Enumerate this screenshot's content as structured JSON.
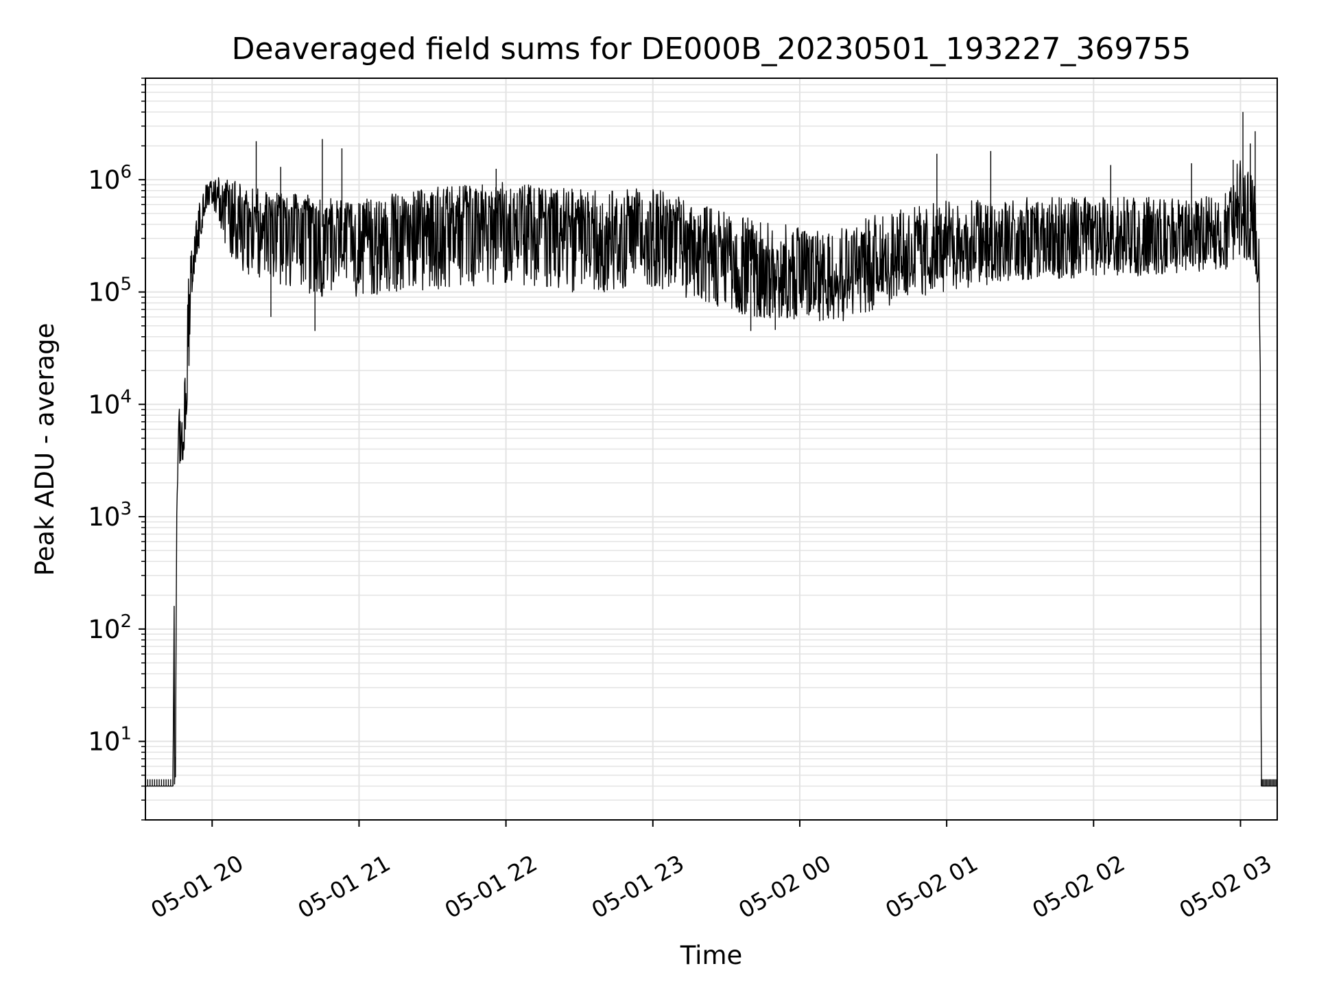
{
  "chart_data": {
    "type": "line",
    "title": "Deaveraged field sums for DE000B_20230501_193227_369755",
    "xlabel": "Time",
    "ylabel": "Peak ADU - average",
    "yscale": "log",
    "ylim": [
      2,
      8000000
    ],
    "xlim": [
      "2023-05-01 19:32:45",
      "2023-05-02 03:15:00"
    ],
    "grid": true,
    "line_color": "#000000",
    "x_ticks": [
      "2023-05-01 20:00",
      "2023-05-01 21:00",
      "2023-05-01 22:00",
      "2023-05-01 23:00",
      "2023-05-02 00:00",
      "2023-05-02 01:00",
      "2023-05-02 02:00",
      "2023-05-02 03:00"
    ],
    "x_tick_labels": [
      "05-01 20",
      "05-01 21",
      "05-01 22",
      "05-01 23",
      "05-02 00",
      "05-02 01",
      "05-02 02",
      "05-02 03"
    ],
    "y_ticks": [
      10,
      100,
      1000,
      10000,
      100000,
      1000000
    ],
    "y_tick_bases": [
      "10",
      "10",
      "10",
      "10",
      "10",
      "10"
    ],
    "y_tick_exponents": [
      "1",
      "2",
      "3",
      "4",
      "5",
      "6"
    ],
    "series": [
      {
        "x": [
          "2023-05-01 19:32:45",
          "2023-05-01 19:44:00",
          "2023-05-01 19:44:30",
          "2023-05-01 19:45:00",
          "2023-05-01 19:45:30",
          "2023-05-01 19:46:00",
          "2023-05-01 19:47:00",
          "2023-05-01 19:48:00",
          "2023-05-01 19:49:00",
          "2023-05-01 19:50:00",
          "2023-05-01 19:52:00",
          "2023-05-01 19:54:00",
          "2023-05-01 19:57:00",
          "2023-05-01 20:00:00",
          "2023-05-01 20:05:00",
          "2023-05-01 20:12:00",
          "2023-05-01 20:22:00",
          "2023-05-01 20:30:00",
          "2023-05-01 20:45:00",
          "2023-05-01 21:00:00",
          "2023-05-01 21:20:00",
          "2023-05-01 21:40:00",
          "2023-05-01 22:00:00",
          "2023-05-01 22:20:00",
          "2023-05-01 22:40:00",
          "2023-05-01 23:00:00",
          "2023-05-01 23:20:00",
          "2023-05-01 23:40:00",
          "2023-05-02 00:00:00",
          "2023-05-02 00:20:00",
          "2023-05-02 00:40:00",
          "2023-05-02 01:00:00",
          "2023-05-02 01:20:00",
          "2023-05-02 01:40:00",
          "2023-05-02 02:00:00",
          "2023-05-02 02:20:00",
          "2023-05-02 02:40:00",
          "2023-05-02 02:55:00",
          "2023-05-02 03:00:00",
          "2023-05-02 03:05:00",
          "2023-05-02 03:07:30",
          "2023-05-02 03:08:00",
          "2023-05-02 03:08:30",
          "2023-05-02 03:15:00"
        ],
        "y": [
          4,
          4,
          180,
          4,
          1000,
          3000,
          6000,
          4000,
          12000,
          20000,
          150000,
          250000,
          700000,
          850000,
          700000,
          550000,
          450000,
          420000,
          380000,
          330000,
          380000,
          420000,
          450000,
          400000,
          360000,
          380000,
          280000,
          180000,
          140000,
          150000,
          200000,
          230000,
          260000,
          280000,
          300000,
          310000,
          300000,
          350000,
          600000,
          500000,
          150000,
          30000,
          4,
          4
        ],
        "band_low": [
          4,
          4,
          4,
          4,
          800,
          2500,
          2700,
          2800,
          5000,
          12000,
          120000,
          200000,
          500000,
          600000,
          250000,
          150000,
          120000,
          110000,
          90000,
          90000,
          100000,
          110000,
          120000,
          100000,
          100000,
          110000,
          80000,
          60000,
          55000,
          55000,
          80000,
          100000,
          120000,
          130000,
          130000,
          140000,
          150000,
          160000,
          200000,
          180000,
          100000,
          30000,
          4,
          4
        ],
        "band_high": [
          4,
          4,
          180,
          4,
          1000,
          7000,
          11000,
          12000,
          20000,
          150000,
          270000,
          600000,
          900000,
          1000000,
          1100000,
          900000,
          800000,
          780000,
          700000,
          650000,
          800000,
          900000,
          950000,
          850000,
          800000,
          850000,
          600000,
          450000,
          380000,
          420000,
          550000,
          650000,
          700000,
          700000,
          700000,
          720000,
          650000,
          800000,
          1800000,
          1200000,
          600000,
          160000,
          4,
          4
        ],
        "spikes": [
          {
            "x": "2023-05-01 20:18:00",
            "y": 2200000
          },
          {
            "x": "2023-05-01 20:28:00",
            "y": 1300000
          },
          {
            "x": "2023-05-01 20:45:00",
            "y": 2300000
          },
          {
            "x": "2023-05-01 20:53:00",
            "y": 1900000
          },
          {
            "x": "2023-05-01 20:24:00",
            "y": 60000
          },
          {
            "x": "2023-05-01 20:42:00",
            "y": 45000
          },
          {
            "x": "2023-05-01 21:56:00",
            "y": 1250000
          },
          {
            "x": "2023-05-01 23:40:00",
            "y": 45000
          },
          {
            "x": "2023-05-01 23:50:00",
            "y": 46000
          },
          {
            "x": "2023-05-02 00:56:00",
            "y": 1700000
          },
          {
            "x": "2023-05-02 01:18:00",
            "y": 1800000
          },
          {
            "x": "2023-05-02 02:07:00",
            "y": 1350000
          },
          {
            "x": "2023-05-02 02:40:00",
            "y": 1400000
          },
          {
            "x": "2023-05-02 02:57:00",
            "y": 1500000
          },
          {
            "x": "2023-05-02 03:01:00",
            "y": 4000000
          },
          {
            "x": "2023-05-02 03:04:00",
            "y": 2100000
          },
          {
            "x": "2023-05-02 03:06:00",
            "y": 2700000
          }
        ]
      }
    ]
  }
}
